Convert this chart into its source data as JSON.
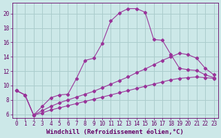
{
  "xlabel": "Windchill (Refroidissement éolien,°C)",
  "bg_color": "#cce8e8",
  "grid_color": "#aacccc",
  "line_color": "#993399",
  "xlim": [
    -0.5,
    23.5
  ],
  "ylim": [
    5.5,
    21.5
  ],
  "xticks": [
    0,
    1,
    2,
    3,
    4,
    5,
    6,
    7,
    8,
    9,
    10,
    11,
    12,
    13,
    14,
    15,
    16,
    17,
    18,
    19,
    20,
    21,
    22,
    23
  ],
  "yticks": [
    6,
    8,
    10,
    12,
    14,
    16,
    18,
    20
  ],
  "series1_x": [
    0,
    1,
    2,
    3,
    4,
    5,
    6,
    7,
    8,
    9,
    10,
    11,
    12,
    13,
    14,
    15,
    16,
    17,
    18,
    19,
    20,
    21,
    22,
    23
  ],
  "series1_y": [
    9.3,
    8.7,
    5.9,
    7.1,
    8.3,
    8.7,
    8.8,
    11.0,
    13.5,
    13.8,
    15.9,
    19.0,
    20.1,
    20.7,
    20.7,
    20.2,
    16.4,
    16.3,
    14.3,
    12.4,
    12.2,
    12.1,
    11.5,
    11.1
  ],
  "series2_x": [
    0,
    1,
    2,
    3,
    4,
    5,
    6,
    7,
    8,
    9,
    10,
    11,
    12,
    13,
    14,
    15,
    16,
    17,
    18,
    19,
    20,
    21,
    22,
    23
  ],
  "series2_y": [
    9.3,
    8.7,
    5.9,
    6.5,
    7.1,
    7.6,
    8.0,
    8.4,
    8.8,
    9.2,
    9.7,
    10.2,
    10.7,
    11.2,
    11.8,
    12.3,
    12.9,
    13.5,
    14.0,
    14.5,
    14.3,
    13.8,
    12.4,
    11.5
  ],
  "series3_x": [
    0,
    1,
    2,
    3,
    4,
    5,
    6,
    7,
    8,
    9,
    10,
    11,
    12,
    13,
    14,
    15,
    16,
    17,
    18,
    19,
    20,
    21,
    22,
    23
  ],
  "series3_y": [
    9.3,
    8.7,
    5.9,
    6.2,
    6.6,
    6.9,
    7.2,
    7.5,
    7.8,
    8.1,
    8.4,
    8.7,
    9.0,
    9.3,
    9.6,
    9.9,
    10.2,
    10.5,
    10.8,
    11.0,
    11.1,
    11.2,
    11.1,
    11.0
  ],
  "font_color": "#660066",
  "tick_fontsize": 5.5,
  "label_fontsize": 6.5
}
